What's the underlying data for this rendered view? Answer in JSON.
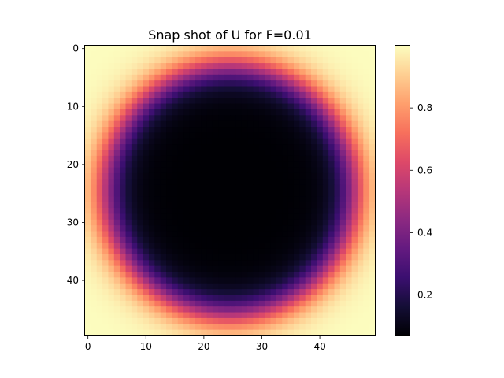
{
  "chart_data": {
    "type": "heatmap",
    "title": "Snap shot of  U for F=0.01",
    "xlabel": "",
    "ylabel": "",
    "colormap": "magma",
    "grid": false,
    "grid_size": [
      50,
      50
    ],
    "x_range": [
      -0.5,
      49.5
    ],
    "y_range": [
      -0.5,
      49.5
    ],
    "y_axis_inverted": true,
    "x_ticks": [
      0,
      10,
      20,
      30,
      40
    ],
    "x_tick_labels": [
      "0",
      "10",
      "20",
      "30",
      "40"
    ],
    "y_ticks": [
      0,
      10,
      20,
      30,
      40
    ],
    "y_tick_labels": [
      "0",
      "10",
      "20",
      "30",
      "40"
    ],
    "value_range": [
      0.07,
      1.0
    ],
    "colorbar_ticks": [
      0.2,
      0.4,
      0.6,
      0.8
    ],
    "colorbar_tick_labels": [
      "0.2",
      "0.4",
      "0.6",
      "0.8"
    ],
    "field": {
      "description_of_shape": "radially symmetric field centered near the middle of the grid: dark core, sharp rise across a ring, bright outside",
      "center": [
        24.5,
        24.5
      ],
      "inner_value": 0.07,
      "outer_value": 1.0,
      "transition_radius": 21.5,
      "transition_width": 1.8
    }
  }
}
